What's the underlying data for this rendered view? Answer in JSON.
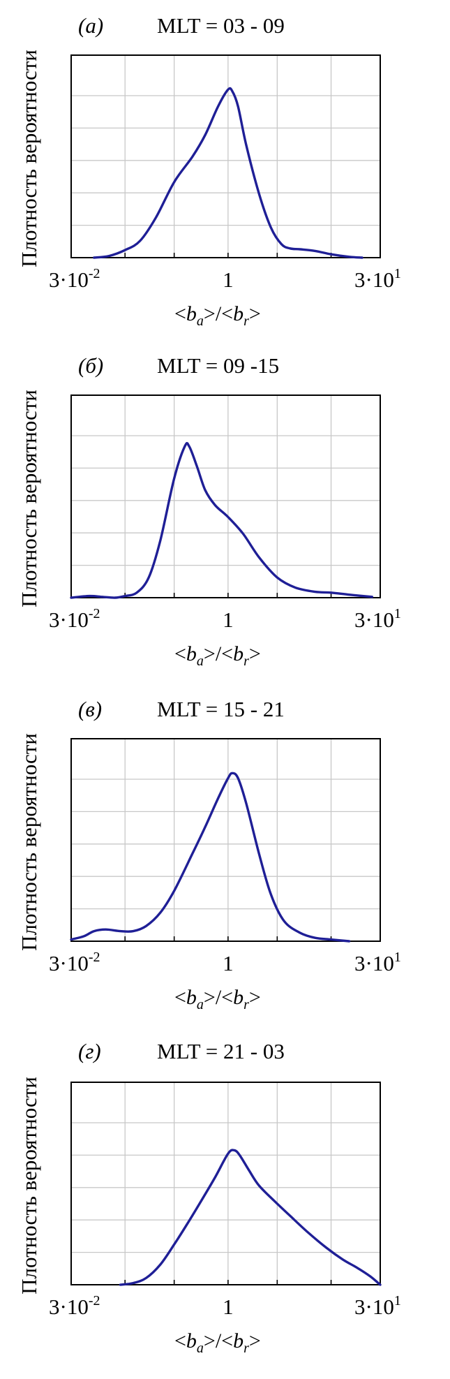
{
  "y_axis_label": "Плотность вероятности",
  "colors": {
    "curve": "#1f1f96",
    "grid": "#c8c8c8",
    "frame": "#000000"
  },
  "chart_data": [
    {
      "type": "line",
      "panel": "(а)",
      "title": "MLT = 03 - 09",
      "x_scale": "log",
      "xlim": [
        0.03,
        30
      ],
      "x_tick_labels": {
        "left_base": "3·10",
        "left_exp": "-2",
        "mid": "1",
        "right_base": "3·10",
        "right_exp": "1"
      },
      "xlabel": {
        "lt": "<",
        "b": "b",
        "a": "a",
        "mid": ">/<",
        "r": "r",
        "gt": ">"
      },
      "ylim": [
        0,
        1.0
      ],
      "grid": true,
      "series": [
        {
          "x": [
            0.05,
            0.07,
            0.1,
            0.14,
            0.2,
            0.3,
            0.45,
            0.6,
            0.8,
            1.0,
            1.1,
            1.25,
            1.5,
            2.0,
            2.6,
            3.3,
            4.0,
            5.0,
            7.0,
            10.0,
            15.0,
            20.0
          ],
          "y": [
            0.0,
            0.01,
            0.045,
            0.1,
            0.24,
            0.45,
            0.6,
            0.73,
            0.9,
            1.0,
            0.99,
            0.9,
            0.67,
            0.38,
            0.18,
            0.08,
            0.055,
            0.05,
            0.04,
            0.02,
            0.005,
            0.0
          ]
        }
      ]
    },
    {
      "type": "line",
      "panel": "(б)",
      "title": "MLT = 09 -15",
      "x_scale": "log",
      "xlim": [
        0.03,
        30
      ],
      "x_tick_labels": {
        "left_base": "3·10",
        "left_exp": "-2",
        "mid": "1",
        "right_base": "3·10",
        "right_exp": "1"
      },
      "xlabel": {
        "lt": "<",
        "b": "b",
        "a": "a",
        "mid": ">/<",
        "r": "r",
        "gt": ">"
      },
      "ylim": [
        0,
        1.0
      ],
      "grid": true,
      "series": [
        {
          "x": [
            0.03,
            0.045,
            0.06,
            0.08,
            0.1,
            0.13,
            0.17,
            0.22,
            0.3,
            0.38,
            0.42,
            0.5,
            0.6,
            0.75,
            1.0,
            1.4,
            2.0,
            3.0,
            4.5,
            7.0,
            10.0,
            15.0,
            25.0
          ],
          "y": [
            0.0,
            0.01,
            0.005,
            0.0,
            0.01,
            0.03,
            0.12,
            0.34,
            0.71,
            0.9,
            0.9,
            0.78,
            0.64,
            0.55,
            0.48,
            0.38,
            0.24,
            0.12,
            0.06,
            0.035,
            0.03,
            0.018,
            0.005
          ]
        }
      ]
    },
    {
      "type": "line",
      "panel": "(в)",
      "title": "MLT = 15 - 21",
      "x_scale": "log",
      "xlim": [
        0.03,
        30
      ],
      "x_tick_labels": {
        "left_base": "3·10",
        "left_exp": "-2",
        "mid": "1",
        "right_base": "3·10",
        "right_exp": "1"
      },
      "xlabel": {
        "lt": "<",
        "b": "b",
        "a": "a",
        "mid": ">/<",
        "r": "r",
        "gt": ">"
      },
      "ylim": [
        0,
        1.0
      ],
      "grid": true,
      "series": [
        {
          "x": [
            0.03,
            0.04,
            0.05,
            0.065,
            0.09,
            0.12,
            0.16,
            0.22,
            0.3,
            0.45,
            0.6,
            0.8,
            1.0,
            1.1,
            1.25,
            1.5,
            2.0,
            2.6,
            3.5,
            5.0,
            7.0,
            10.0,
            15.0
          ],
          "y": [
            0.01,
            0.03,
            0.06,
            0.07,
            0.06,
            0.06,
            0.09,
            0.17,
            0.3,
            0.52,
            0.68,
            0.85,
            0.97,
            1.0,
            0.97,
            0.82,
            0.52,
            0.28,
            0.12,
            0.05,
            0.02,
            0.01,
            0.0
          ]
        }
      ]
    },
    {
      "type": "line",
      "panel": "(г)",
      "title": "MLT = 21 - 03",
      "x_scale": "log",
      "xlim": [
        0.03,
        30
      ],
      "x_tick_labels": {
        "left_base": "3·10",
        "left_exp": "-2",
        "mid": "1",
        "right_base": "3·10",
        "right_exp": "1"
      },
      "xlabel": {
        "lt": "<",
        "b": "b",
        "a": "a",
        "mid": ">/<",
        "r": "r",
        "gt": ">"
      },
      "ylim": [
        0,
        1.0
      ],
      "grid": true,
      "series": [
        {
          "x": [
            0.09,
            0.12,
            0.16,
            0.22,
            0.3,
            0.4,
            0.55,
            0.75,
            1.0,
            1.15,
            1.3,
            1.6,
            2.0,
            2.8,
            4.0,
            6.0,
            9.0,
            13.0,
            18.0,
            24.0,
            30.0
          ],
          "y": [
            0.0,
            0.01,
            0.04,
            0.12,
            0.24,
            0.36,
            0.5,
            0.64,
            0.78,
            0.8,
            0.77,
            0.68,
            0.59,
            0.5,
            0.41,
            0.31,
            0.22,
            0.15,
            0.1,
            0.05,
            0.0
          ]
        }
      ]
    }
  ]
}
